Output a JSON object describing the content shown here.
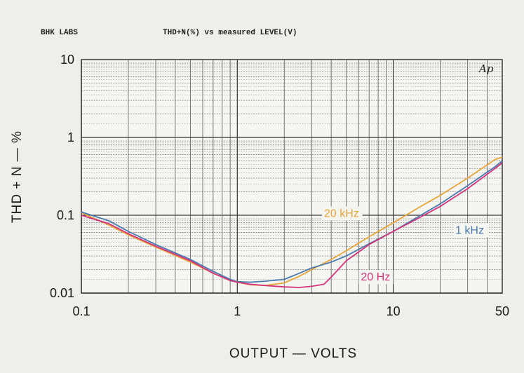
{
  "header": {
    "lab": "BHK LABS",
    "title": "THD+N(%) vs measured LEVEL(V)",
    "mark": "Ap"
  },
  "chart_data": {
    "type": "line",
    "title": "THD+N(%) vs measured LEVEL(V)",
    "xlabel": "OUTPUT — VOLTS",
    "ylabel": "THD + N — %",
    "xscale": "log",
    "yscale": "log",
    "xlim": [
      0.1,
      50
    ],
    "ylim": [
      0.01,
      10
    ],
    "x_ticks": [
      {
        "value": 0.1,
        "label": "0.1"
      },
      {
        "value": 1,
        "label": "1"
      },
      {
        "value": 10,
        "label": "10"
      },
      {
        "value": 50,
        "label": "50"
      }
    ],
    "y_ticks": [
      {
        "value": 0.01,
        "label": "0.01"
      },
      {
        "value": 0.1,
        "label": "0.1"
      },
      {
        "value": 1,
        "label": "1"
      },
      {
        "value": 10,
        "label": "10"
      }
    ],
    "grid": true,
    "series": [
      {
        "name": "20 kHz",
        "color": "#e8a53a",
        "label_at": [
          3.6,
          0.095
        ],
        "points": [
          [
            0.1,
            0.108
          ],
          [
            0.15,
            0.075
          ],
          [
            0.2,
            0.056
          ],
          [
            0.3,
            0.039
          ],
          [
            0.5,
            0.025
          ],
          [
            0.7,
            0.018
          ],
          [
            0.9,
            0.0145
          ],
          [
            1.0,
            0.0138
          ],
          [
            1.2,
            0.0128
          ],
          [
            1.5,
            0.0125
          ],
          [
            2.0,
            0.0135
          ],
          [
            2.5,
            0.0165
          ],
          [
            3.0,
            0.02
          ],
          [
            4.0,
            0.027
          ],
          [
            5.0,
            0.035
          ],
          [
            7.0,
            0.053
          ],
          [
            10.0,
            0.08
          ],
          [
            15.0,
            0.13
          ],
          [
            20.0,
            0.18
          ],
          [
            30.0,
            0.3
          ],
          [
            45.0,
            0.52
          ],
          [
            50.0,
            0.56
          ]
        ]
      },
      {
        "name": "1 kHz",
        "color": "#4a79b0",
        "label_at": [
          25,
          0.058
        ],
        "points": [
          [
            0.1,
            0.11
          ],
          [
            0.15,
            0.085
          ],
          [
            0.2,
            0.062
          ],
          [
            0.3,
            0.042
          ],
          [
            0.5,
            0.027
          ],
          [
            0.7,
            0.019
          ],
          [
            0.9,
            0.015
          ],
          [
            1.0,
            0.014
          ],
          [
            1.2,
            0.0138
          ],
          [
            1.5,
            0.0142
          ],
          [
            2.0,
            0.015
          ],
          [
            2.5,
            0.018
          ],
          [
            3.0,
            0.021
          ],
          [
            4.0,
            0.025
          ],
          [
            5.0,
            0.03
          ],
          [
            7.0,
            0.043
          ],
          [
            10.0,
            0.062
          ],
          [
            15.0,
            0.1
          ],
          [
            20.0,
            0.14
          ],
          [
            30.0,
            0.24
          ],
          [
            45.0,
            0.42
          ],
          [
            50.0,
            0.5
          ]
        ]
      },
      {
        "name": "20 Hz",
        "color": "#d4337a",
        "label_at": [
          6.2,
          0.0145
        ],
        "points": [
          [
            0.1,
            0.1
          ],
          [
            0.15,
            0.078
          ],
          [
            0.2,
            0.058
          ],
          [
            0.3,
            0.04
          ],
          [
            0.5,
            0.026
          ],
          [
            0.7,
            0.018
          ],
          [
            0.9,
            0.0145
          ],
          [
            1.0,
            0.0138
          ],
          [
            1.2,
            0.013
          ],
          [
            1.5,
            0.0125
          ],
          [
            2.0,
            0.012
          ],
          [
            2.5,
            0.0118
          ],
          [
            3.0,
            0.0122
          ],
          [
            3.6,
            0.013
          ],
          [
            4.0,
            0.016
          ],
          [
            5.0,
            0.026
          ],
          [
            7.0,
            0.042
          ],
          [
            10.0,
            0.062
          ],
          [
            15.0,
            0.095
          ],
          [
            20.0,
            0.13
          ],
          [
            30.0,
            0.22
          ],
          [
            45.0,
            0.4
          ],
          [
            50.0,
            0.47
          ]
        ]
      }
    ]
  }
}
